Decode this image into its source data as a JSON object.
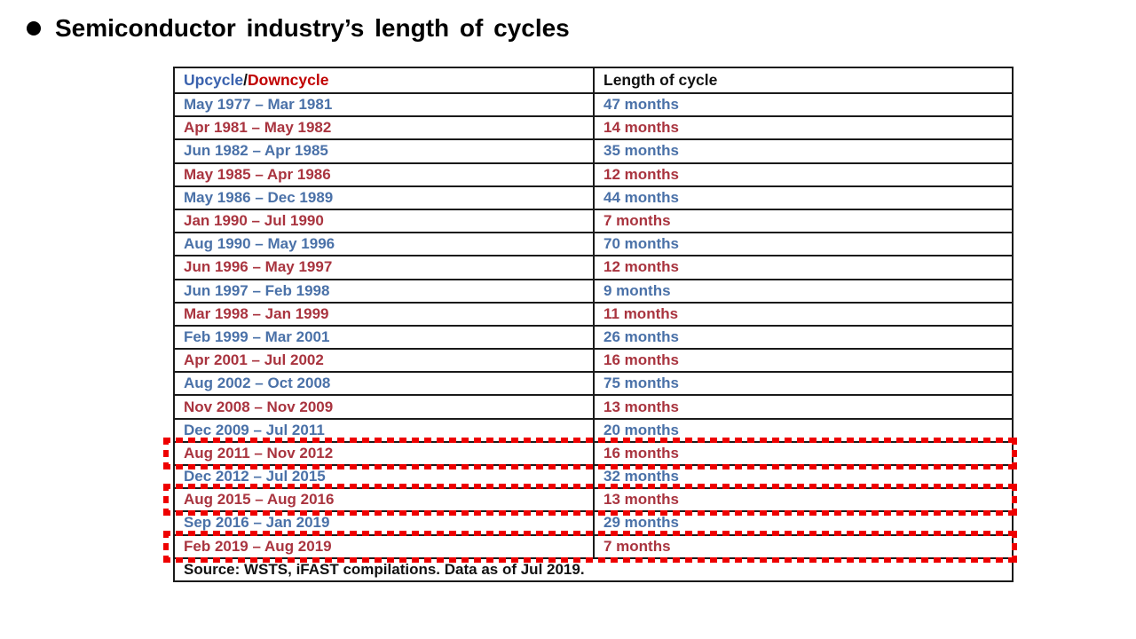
{
  "page": {
    "title": "Semiconductor industry’s length of cycles",
    "bullet_glyph": "●"
  },
  "table": {
    "header": {
      "upcycle_label": "Upcycle",
      "separator": "/",
      "downcycle_label": "Downcycle",
      "length_label": "Length of cycle"
    },
    "rows": [
      {
        "period": "May 1977 – Mar 1981",
        "length": "47 months",
        "type": "up",
        "highlighted": false
      },
      {
        "period": "Apr 1981 – May 1982",
        "length": "14 months",
        "type": "down",
        "highlighted": false
      },
      {
        "period": "Jun 1982 – Apr 1985",
        "length": "35 months",
        "type": "up",
        "highlighted": false
      },
      {
        "period": "May 1985 – Apr 1986",
        "length": "12 months",
        "type": "down",
        "highlighted": false
      },
      {
        "period": "May 1986 – Dec 1989",
        "length": "44 months",
        "type": "up",
        "highlighted": false
      },
      {
        "period": "Jan 1990 – Jul 1990",
        "length": "7 months",
        "type": "down",
        "highlighted": false
      },
      {
        "period": "Aug 1990 – May 1996",
        "length": "70 months",
        "type": "up",
        "highlighted": false
      },
      {
        "period": "Jun 1996 – May 1997",
        "length": "12 months",
        "type": "down",
        "highlighted": false
      },
      {
        "period": "Jun 1997 – Feb 1998",
        "length": "9 months",
        "type": "up",
        "highlighted": false
      },
      {
        "period": "Mar 1998 – Jan 1999",
        "length": "11 months",
        "type": "down",
        "highlighted": false
      },
      {
        "period": "Feb 1999 – Mar 2001",
        "length": "26 months",
        "type": "up",
        "highlighted": false
      },
      {
        "period": "Apr 2001 – Jul 2002",
        "length": "16 months",
        "type": "down",
        "highlighted": false
      },
      {
        "period": "Aug 2002 – Oct 2008",
        "length": "75 months",
        "type": "up",
        "highlighted": false
      },
      {
        "period": "Nov 2008 – Nov 2009",
        "length": "13 months",
        "type": "down",
        "highlighted": false
      },
      {
        "period": "Dec 2009 – Jul 2011",
        "length": "20 months",
        "type": "up",
        "highlighted": false
      },
      {
        "period": "Aug 2011 – Nov 2012",
        "length": "16 months",
        "type": "down",
        "highlighted": true
      },
      {
        "period": "Dec 2012 – Jul 2015",
        "length": "32 months",
        "type": "up",
        "highlighted": false
      },
      {
        "period": "Aug 2015 – Aug 2016",
        "length": "13 months",
        "type": "down",
        "highlighted": true
      },
      {
        "period": "Sep 2016 – Jan 2019",
        "length": "29 months",
        "type": "up",
        "highlighted": false
      },
      {
        "period": "Feb 2019 – Aug 2019",
        "length": "7 months",
        "type": "down",
        "highlighted": true
      }
    ],
    "source": "Source: WSTS, iFAST compilations. Data as of Jul 2019."
  },
  "colors": {
    "upcycle_text": "#4A71A8",
    "downcycle_text": "#A9343F",
    "header_upcycle": "#3A62AE",
    "header_downcycle": "#C00000",
    "highlight_dash": "#EE0000",
    "table_border": "#1A1A1A"
  }
}
